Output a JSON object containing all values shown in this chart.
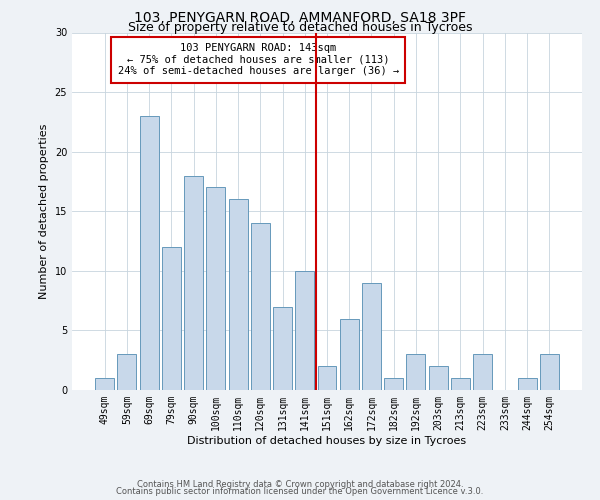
{
  "title": "103, PENYGARN ROAD, AMMANFORD, SA18 3PF",
  "subtitle": "Size of property relative to detached houses in Tycroes",
  "xlabel": "Distribution of detached houses by size in Tycroes",
  "ylabel": "Number of detached properties",
  "bar_labels": [
    "49sqm",
    "59sqm",
    "69sqm",
    "79sqm",
    "90sqm",
    "100sqm",
    "110sqm",
    "120sqm",
    "131sqm",
    "141sqm",
    "151sqm",
    "162sqm",
    "172sqm",
    "182sqm",
    "192sqm",
    "203sqm",
    "213sqm",
    "223sqm",
    "233sqm",
    "244sqm",
    "254sqm"
  ],
  "bar_values": [
    1,
    3,
    23,
    12,
    18,
    17,
    16,
    14,
    7,
    10,
    2,
    6,
    9,
    1,
    3,
    2,
    1,
    3,
    0,
    1,
    3
  ],
  "bar_color": "#c8d8ea",
  "bar_edge_color": "#6699bb",
  "reference_line_x_label": "141sqm",
  "reference_line_color": "#cc0000",
  "annotation_title": "103 PENYGARN ROAD: 143sqm",
  "annotation_line1": "← 75% of detached houses are smaller (113)",
  "annotation_line2": "24% of semi-detached houses are larger (36) →",
  "annotation_box_edge_color": "#cc0000",
  "ylim": [
    0,
    30
  ],
  "yticks": [
    0,
    5,
    10,
    15,
    20,
    25,
    30
  ],
  "footer1": "Contains HM Land Registry data © Crown copyright and database right 2024.",
  "footer2": "Contains public sector information licensed under the Open Government Licence v.3.0.",
  "title_fontsize": 10,
  "subtitle_fontsize": 9,
  "axis_label_fontsize": 8,
  "tick_fontsize": 7,
  "annotation_fontsize": 7.5,
  "footer_fontsize": 6,
  "bg_color": "#eef2f6",
  "plot_bg_color": "#ffffff",
  "grid_color": "#c8d4de"
}
